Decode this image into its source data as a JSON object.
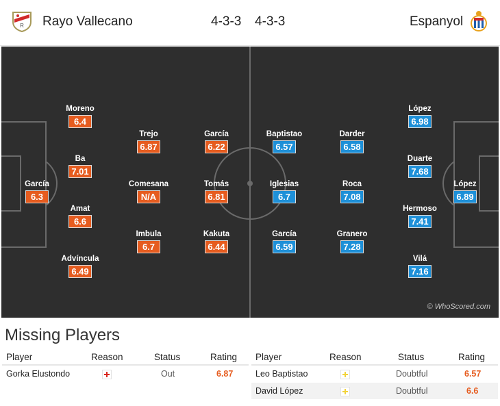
{
  "header": {
    "home": {
      "name": "Rayo Vallecano",
      "formation": "4-3-3",
      "crest": "rayo-crest-icon"
    },
    "away": {
      "name": "Espanyol",
      "formation": "4-3-3",
      "crest": "espanyol-crest-icon"
    }
  },
  "pitch": {
    "watermark": "© WhoScored.com",
    "home_players": [
      {
        "name": "García",
        "rating": "6.3"
      },
      {
        "name": "Moreno",
        "rating": "6.4"
      },
      {
        "name": "Ba",
        "rating": "7.01"
      },
      {
        "name": "Amat",
        "rating": "6.6"
      },
      {
        "name": "Advíncula",
        "rating": "6.49"
      },
      {
        "name": "Trejo",
        "rating": "6.87"
      },
      {
        "name": "Comesana",
        "rating": "N/A"
      },
      {
        "name": "Imbula",
        "rating": "6.7"
      },
      {
        "name": "García",
        "rating": "6.22"
      },
      {
        "name": "Tomás",
        "rating": "6.81"
      },
      {
        "name": "Kakuta",
        "rating": "6.44"
      }
    ],
    "away_players": [
      {
        "name": "Baptistao",
        "rating": "6.57"
      },
      {
        "name": "Iglesias",
        "rating": "6.7"
      },
      {
        "name": "García",
        "rating": "6.59"
      },
      {
        "name": "Darder",
        "rating": "6.58"
      },
      {
        "name": "Roca",
        "rating": "7.08"
      },
      {
        "name": "Granero",
        "rating": "7.28"
      },
      {
        "name": "López",
        "rating": "6.98"
      },
      {
        "name": "Duarte",
        "rating": "7.68"
      },
      {
        "name": "Hermoso",
        "rating": "7.41"
      },
      {
        "name": "Vilá",
        "rating": "7.16"
      },
      {
        "name": "López",
        "rating": "6.89"
      }
    ]
  },
  "missing": {
    "title": "Missing Players",
    "headers": {
      "player": "Player",
      "reason": "Reason",
      "status": "Status",
      "rating": "Rating"
    },
    "home": [
      {
        "player": "Gorka Elustondo",
        "reason_icon": "injury-red-cross-icon",
        "status": "Out",
        "rating": "6.87"
      }
    ],
    "away": [
      {
        "player": "Leo Baptistao",
        "reason_icon": "doubtful-yellow-cross-icon",
        "status": "Doubtful",
        "rating": "6.57"
      },
      {
        "player": "David López",
        "reason_icon": "doubtful-yellow-cross-icon",
        "status": "Doubtful",
        "rating": "6.6"
      }
    ]
  },
  "colors": {
    "home_rating": "#e65c1f",
    "away_rating": "#1e90d8",
    "pitch": "#2e2e2e",
    "injury_cross": "#d9251c",
    "doubtful_cross": "#f2d33a"
  }
}
